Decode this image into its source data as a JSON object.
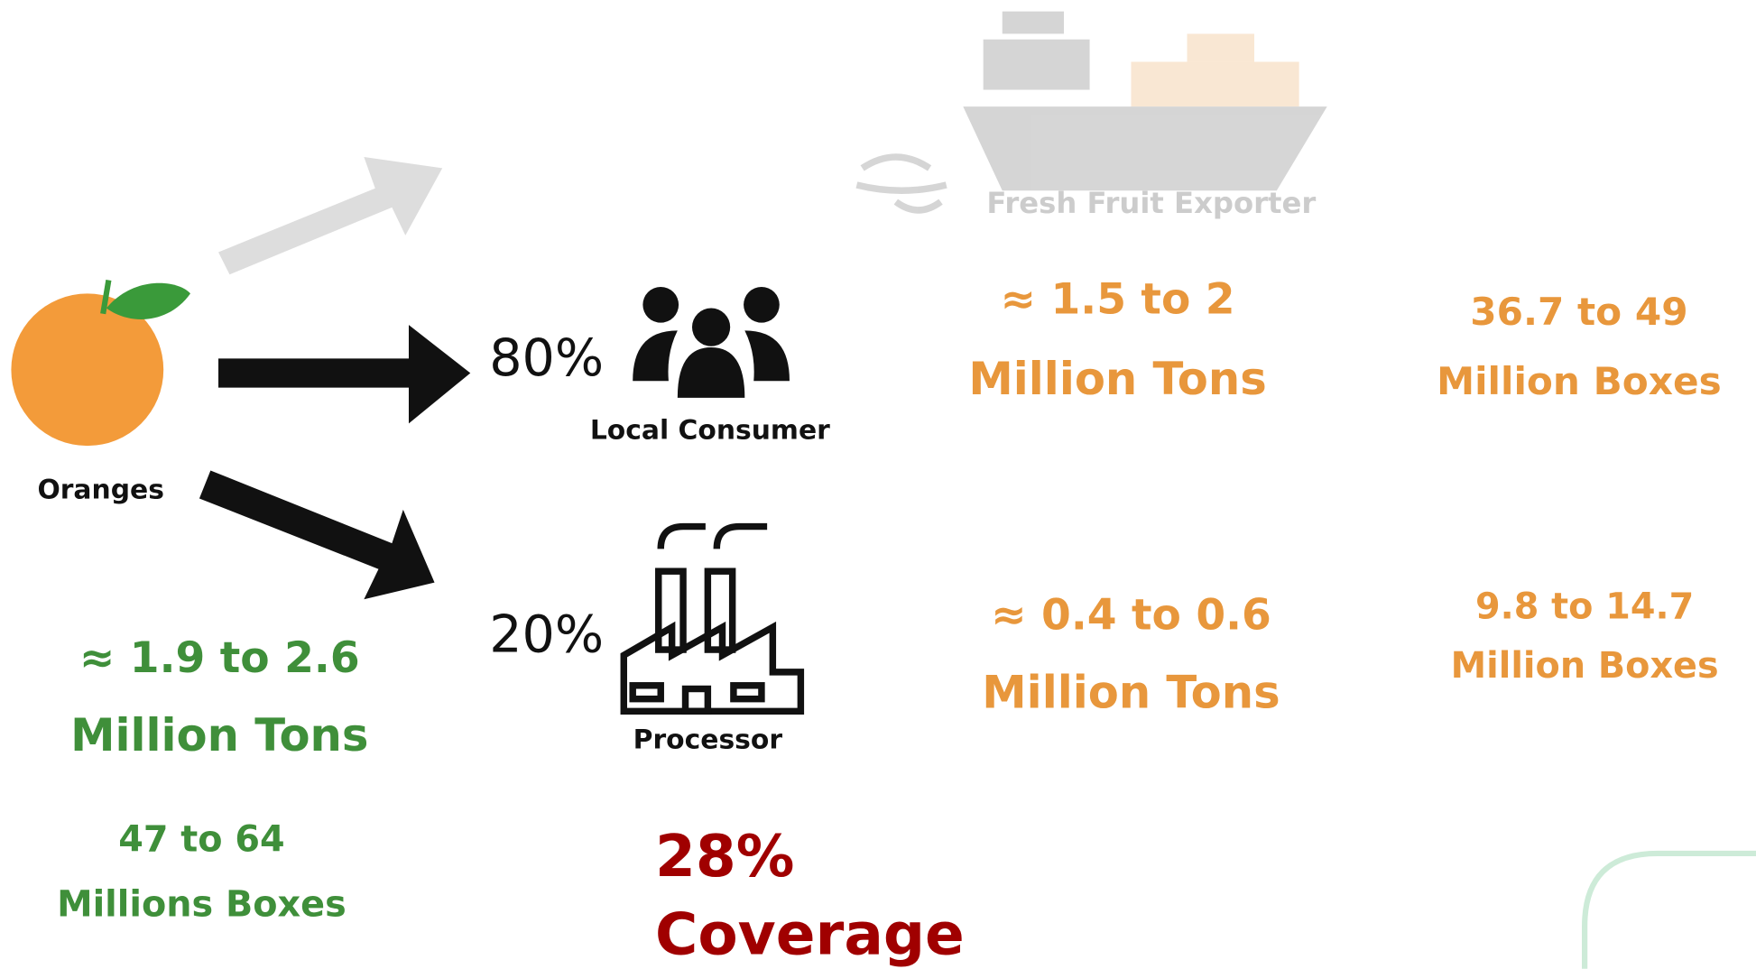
{
  "exporter": {
    "label": "Fresh Fruit Exporter",
    "tons": [
      "≈ 1.5 to 2",
      "Million Tons"
    ],
    "boxes": [
      "36.7 to 49",
      "Million Boxes"
    ]
  },
  "consumer": {
    "share": "80%",
    "label": "Local Consumer"
  },
  "processor": {
    "share": "20%",
    "label": "Processor",
    "tons": [
      "≈ 0.4 to 0.6",
      "Million Tons"
    ],
    "boxes": [
      "9.8 to 14.7",
      "Million Boxes"
    ]
  },
  "oranges": {
    "label": "Oranges",
    "tons": [
      "≈ 1.9 to 2.6",
      "Million Tons"
    ],
    "boxes": [
      "47 to 64",
      "Millions Boxes"
    ]
  },
  "coverage": [
    "28%",
    "Coverage"
  ]
}
